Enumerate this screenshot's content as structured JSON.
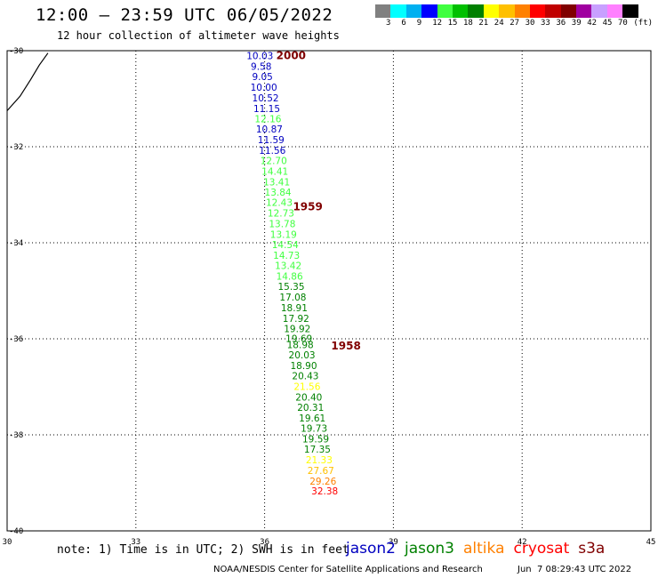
{
  "title": "12:00 – 23:59 UTC 06/05/2022",
  "subtitle": "12 hour collection of altimeter wave heights",
  "colorbar": {
    "colors": [
      "#808080",
      "#00ffff",
      "#00b0f0",
      "#0000ff",
      "#40ff40",
      "#00c000",
      "#008000",
      "#ffff00",
      "#ffc000",
      "#ff8000",
      "#ff0000",
      "#c00000",
      "#800000",
      "#a000a0",
      "#c8a0ff",
      "#ff80ff",
      "#000000"
    ],
    "labels": [
      "3",
      "6",
      "9",
      "12",
      "15",
      "18",
      "21",
      "24",
      "27",
      "30",
      "33",
      "36",
      "39",
      "42",
      "45",
      "70",
      "(ft)"
    ]
  },
  "axes": {
    "x_ticks": [
      "30",
      "33",
      "36",
      "39",
      "42",
      "45"
    ],
    "y_ticks": [
      "-30",
      "-32",
      "-34",
      "-36",
      "-38",
      "-40"
    ],
    "x_range": [
      30,
      45
    ],
    "y_range": [
      -40,
      -30
    ]
  },
  "coastline": [
    [
      30.0,
      -31.25
    ],
    [
      30.3,
      -30.95
    ],
    [
      30.55,
      -30.6
    ],
    [
      30.75,
      -30.3
    ],
    [
      30.95,
      -30.05
    ]
  ],
  "wave_heights": [
    {
      "value": "10.03",
      "lon": 35.89,
      "lat": -30.1,
      "color": "#0000c0"
    },
    {
      "value": "9.58",
      "lon": 35.92,
      "lat": -30.32,
      "color": "#0000c0"
    },
    {
      "value": "9.05",
      "lon": 35.95,
      "lat": -30.54,
      "color": "#0000c0"
    },
    {
      "value": "10.00",
      "lon": 35.98,
      "lat": -30.76,
      "color": "#0000c0"
    },
    {
      "value": "10.52",
      "lon": 36.02,
      "lat": -30.98,
      "color": "#0000c0"
    },
    {
      "value": "11.15",
      "lon": 36.05,
      "lat": -31.2,
      "color": "#0000c0"
    },
    {
      "value": "12.16",
      "lon": 36.08,
      "lat": -31.42,
      "color": "#40ff40"
    },
    {
      "value": "10.87",
      "lon": 36.11,
      "lat": -31.63,
      "color": "#0000c0"
    },
    {
      "value": "11.59",
      "lon": 36.15,
      "lat": -31.85,
      "color": "#0000c0"
    },
    {
      "value": "11.56",
      "lon": 36.18,
      "lat": -32.07,
      "color": "#0000c0"
    },
    {
      "value": "12.70",
      "lon": 36.21,
      "lat": -32.29,
      "color": "#40ff40"
    },
    {
      "value": "14.41",
      "lon": 36.24,
      "lat": -32.51,
      "color": "#40ff40"
    },
    {
      "value": "13.41",
      "lon": 36.28,
      "lat": -32.73,
      "color": "#40ff40"
    },
    {
      "value": "13.84",
      "lon": 36.31,
      "lat": -32.94,
      "color": "#40ff40"
    },
    {
      "value": "12.43",
      "lon": 36.34,
      "lat": -33.16,
      "color": "#40ff40"
    },
    {
      "value": "12.73",
      "lon": 36.38,
      "lat": -33.38,
      "color": "#40ff40"
    },
    {
      "value": "13.78",
      "lon": 36.41,
      "lat": -33.6,
      "color": "#40ff40"
    },
    {
      "value": "13.19",
      "lon": 36.44,
      "lat": -33.82,
      "color": "#40ff40"
    },
    {
      "value": "14.54",
      "lon": 36.48,
      "lat": -34.04,
      "color": "#40ff40"
    },
    {
      "value": "14.73",
      "lon": 36.51,
      "lat": -34.26,
      "color": "#40ff40"
    },
    {
      "value": "13.42",
      "lon": 36.55,
      "lat": -34.47,
      "color": "#40ff40"
    },
    {
      "value": "14.86",
      "lon": 36.58,
      "lat": -34.69,
      "color": "#40ff40"
    },
    {
      "value": "15.35",
      "lon": 36.62,
      "lat": -34.91,
      "color": "#008000"
    },
    {
      "value": "17.08",
      "lon": 36.66,
      "lat": -35.13,
      "color": "#008000"
    },
    {
      "value": "18.91",
      "lon": 36.69,
      "lat": -35.35,
      "color": "#008000"
    },
    {
      "value": "17.92",
      "lon": 36.73,
      "lat": -35.57,
      "color": "#008000"
    },
    {
      "value": "19.92",
      "lon": 36.76,
      "lat": -35.79,
      "color": "#008000"
    },
    {
      "value": "19.69",
      "lon": 36.8,
      "lat": -35.99,
      "color": "#008000"
    },
    {
      "value": "18.98",
      "lon": 36.83,
      "lat": -36.12,
      "color": "#008000"
    },
    {
      "value": "20.03",
      "lon": 36.87,
      "lat": -36.33,
      "color": "#008000"
    },
    {
      "value": "18.90",
      "lon": 36.91,
      "lat": -36.56,
      "color": "#008000"
    },
    {
      "value": "20.43",
      "lon": 36.95,
      "lat": -36.77,
      "color": "#008000"
    },
    {
      "value": "21.56",
      "lon": 36.99,
      "lat": -36.99,
      "color": "#ffff00"
    },
    {
      "value": "20.40",
      "lon": 37.03,
      "lat": -37.21,
      "color": "#008000"
    },
    {
      "value": "20.31",
      "lon": 37.07,
      "lat": -37.43,
      "color": "#008000"
    },
    {
      "value": "19.61",
      "lon": 37.11,
      "lat": -37.65,
      "color": "#008000"
    },
    {
      "value": "19.73",
      "lon": 37.15,
      "lat": -37.86,
      "color": "#008000"
    },
    {
      "value": "19.59",
      "lon": 37.19,
      "lat": -38.08,
      "color": "#008000"
    },
    {
      "value": "17.35",
      "lon": 37.23,
      "lat": -38.3,
      "color": "#008000"
    },
    {
      "value": "21.33",
      "lon": 37.27,
      "lat": -38.52,
      "color": "#ffff00"
    },
    {
      "value": "27.67",
      "lon": 37.31,
      "lat": -38.74,
      "color": "#ffc000"
    },
    {
      "value": "29.26",
      "lon": 37.36,
      "lat": -38.96,
      "color": "#ff8000"
    },
    {
      "value": "32.38",
      "lon": 37.4,
      "lat": -39.17,
      "color": "#ff0000"
    }
  ],
  "time_labels": [
    {
      "text": "2000",
      "lon": 36.27,
      "lat": -30.1
    },
    {
      "text": "1959",
      "lon": 36.66,
      "lat": -33.25
    },
    {
      "text": "1958",
      "lon": 37.55,
      "lat": -36.15
    }
  ],
  "note": "note: 1) Time is in UTC; 2) SWH is in feet",
  "legend": [
    {
      "name": "jason2",
      "color": "#0000c0"
    },
    {
      "name": "jason3",
      "color": "#008000"
    },
    {
      "name": "altika",
      "color": "#ff8000"
    },
    {
      "name": "cryosat",
      "color": "#ff0000"
    },
    {
      "name": "s3a",
      "color": "#800000"
    }
  ],
  "credit": "NOAA/NESDIS Center for Satellite Applications and Research",
  "timestamp": "Jun  7 08:29:43 UTC 2022"
}
